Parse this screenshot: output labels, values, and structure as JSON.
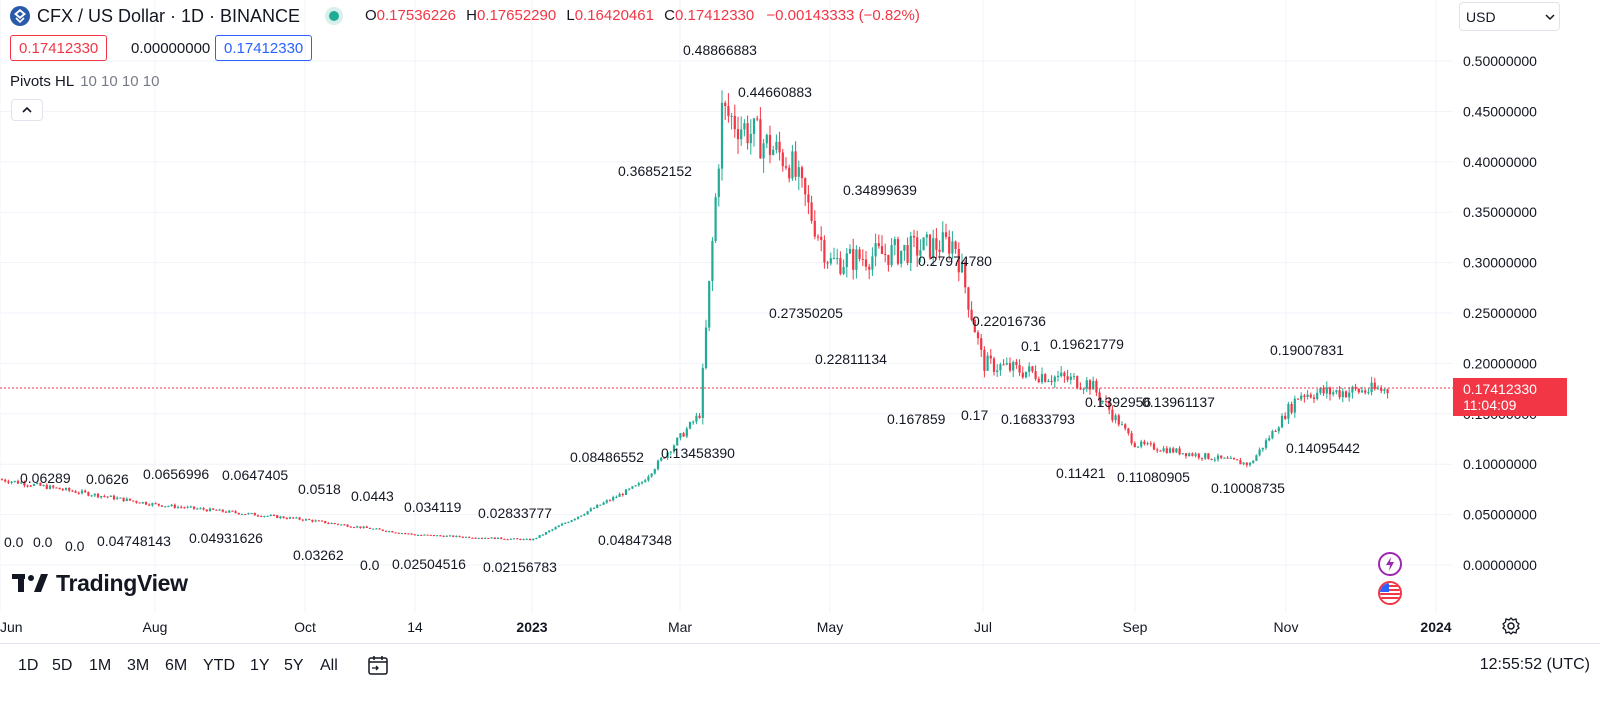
{
  "header": {
    "title": "CFX / US Dollar · 1D · BINANCE",
    "ohlc": {
      "o_label": "O",
      "o": "0.17536226",
      "h_label": "H",
      "h": "0.17652290",
      "l_label": "L",
      "l": "0.16420461",
      "c_label": "C",
      "c": "0.17412330",
      "change": "−0.00143333 (−0.82%)"
    },
    "bid": "0.17412330",
    "spread": "0.00000000",
    "ask": "0.17412330"
  },
  "indicator": {
    "name": "Pivots HL",
    "params": "10 10 10 10"
  },
  "currency": "USD",
  "price_scale": {
    "ticks": [
      "0.50000000",
      "0.45000000",
      "0.40000000",
      "0.35000000",
      "0.30000000",
      "0.25000000",
      "0.20000000",
      "0.15000000",
      "0.10000000",
      "0.05000000",
      "0.00000000"
    ],
    "current_price": "0.17412330",
    "countdown": "11:04:09"
  },
  "time_axis": {
    "labels": [
      "Jun",
      "Aug",
      "Oct",
      "14",
      "2023",
      "Mar",
      "May",
      "Jul",
      "Sep",
      "Nov",
      "2024"
    ]
  },
  "pivot_labels": [
    "0.06289",
    "0.0626",
    "0.0656996",
    "0.0647405",
    "0.0518",
    "0.0443",
    "0.48866883",
    "0.44660883",
    "0.36852152",
    "0.34899639",
    "0.27974780",
    "0.27350205",
    "0.22016736",
    "0.1",
    "0.19621779",
    "0.22811134",
    "0.19007831",
    "0.0",
    "0.0",
    "0.0",
    "0.04748143",
    "0.04931626",
    "0.03262",
    "0.0",
    "0.02504516",
    "0.034119",
    "0.02833777",
    "0.02156783",
    "0.08486552",
    "0.04847348",
    "0.13458390",
    "0.167859",
    "0.17",
    "0.16833793",
    "0.1392956",
    "0.13961137",
    "0.11421",
    "0.11080905",
    "0.10008735",
    "0.14095442"
  ],
  "branding": {
    "name": "TradingView"
  },
  "timeframes": [
    "1D",
    "5D",
    "1M",
    "3M",
    "6M",
    "YTD",
    "1Y",
    "5Y",
    "All"
  ],
  "clock": "12:55:52 (UTC)",
  "colors": {
    "up": "#22ab94",
    "down": "#f23645",
    "accent": "#2962ff"
  },
  "chart_data": {
    "type": "candlestick",
    "symbol": "CFX / US Dollar",
    "interval": "1D",
    "exchange": "BINANCE",
    "ylim": [
      0.0,
      0.5
    ],
    "approx_close_path": [
      {
        "x": "Jun",
        "y": 0.085
      },
      {
        "x": "Aug",
        "y": 0.06
      },
      {
        "x": "Oct",
        "y": 0.045
      },
      {
        "x": "14",
        "y": 0.03
      },
      {
        "x": "2023",
        "y": 0.025
      },
      {
        "x": "Feb",
        "y": 0.08
      },
      {
        "x": "Mar",
        "y": 0.15
      },
      {
        "x": "Mar",
        "y": 0.45
      },
      {
        "x": "Apr",
        "y": 0.4
      },
      {
        "x": "May",
        "y": 0.3
      },
      {
        "x": "Jun",
        "y": 0.32
      },
      {
        "x": "Jul",
        "y": 0.2
      },
      {
        "x": "Aug",
        "y": 0.18
      },
      {
        "x": "Sep",
        "y": 0.12
      },
      {
        "x": "Oct",
        "y": 0.1
      },
      {
        "x": "Nov",
        "y": 0.17
      },
      {
        "x": "Dec",
        "y": 0.174
      }
    ]
  }
}
